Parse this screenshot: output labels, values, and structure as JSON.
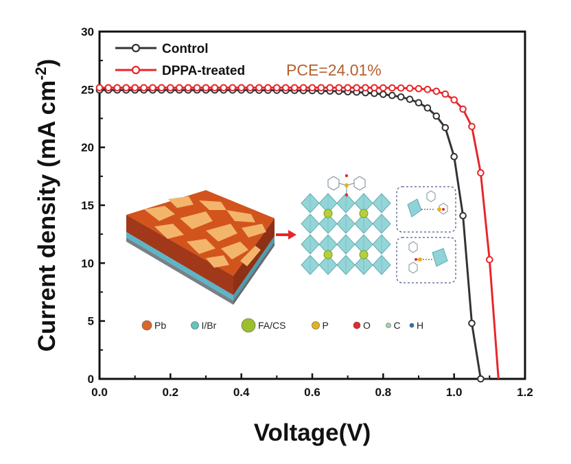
{
  "chart_data": {
    "type": "line",
    "xlabel": "Voltage(V)",
    "ylabel": "Current density (mA cm",
    "ylabel_sup": "-2",
    "ylabel_close": ")",
    "xlim": [
      0.0,
      1.2
    ],
    "ylim": [
      0,
      30
    ],
    "x_ticks": [
      0.0,
      0.2,
      0.4,
      0.6,
      0.8,
      1.0,
      1.2
    ],
    "x_tick_labels": [
      "0.0",
      "0.2",
      "0.4",
      "0.6",
      "0.8",
      "1.0",
      "1.2"
    ],
    "y_ticks": [
      0,
      5,
      10,
      15,
      20,
      25,
      30
    ],
    "y_tick_labels": [
      "0",
      "5",
      "10",
      "15",
      "20",
      "25",
      "30"
    ],
    "grid": false,
    "legend_position": "top-left",
    "annotation": "PCE=24.01%",
    "series": [
      {
        "name": "Control",
        "color": "#333333",
        "x": [
          0.0,
          0.025,
          0.05,
          0.075,
          0.1,
          0.125,
          0.15,
          0.175,
          0.2,
          0.225,
          0.25,
          0.275,
          0.3,
          0.325,
          0.35,
          0.375,
          0.4,
          0.425,
          0.45,
          0.475,
          0.5,
          0.525,
          0.55,
          0.575,
          0.6,
          0.625,
          0.65,
          0.675,
          0.7,
          0.725,
          0.75,
          0.775,
          0.8,
          0.825,
          0.85,
          0.875,
          0.9,
          0.925,
          0.95,
          0.975,
          1.0,
          1.025,
          1.05,
          1.075,
          1.1
        ],
        "y": [
          24.95,
          24.95,
          24.95,
          24.95,
          24.95,
          24.95,
          24.95,
          24.95,
          24.95,
          24.95,
          24.95,
          24.95,
          24.95,
          24.95,
          24.94,
          24.94,
          24.94,
          24.94,
          24.93,
          24.93,
          24.93,
          24.92,
          24.92,
          24.9,
          24.9,
          24.88,
          24.86,
          24.84,
          24.8,
          24.77,
          24.72,
          24.66,
          24.58,
          24.48,
          24.35,
          24.15,
          23.85,
          23.4,
          22.7,
          21.7,
          19.2,
          14.1,
          4.8,
          0.0,
          0.0
        ],
        "marker_x": [
          0.0,
          0.025,
          0.05,
          0.075,
          0.1,
          0.125,
          0.15,
          0.175,
          0.2,
          0.225,
          0.25,
          0.275,
          0.3,
          0.325,
          0.35,
          0.375,
          0.4,
          0.425,
          0.45,
          0.475,
          0.5,
          0.525,
          0.55,
          0.575,
          0.6,
          0.625,
          0.65,
          0.675,
          0.7,
          0.725,
          0.75,
          0.775,
          0.8,
          0.825,
          0.85,
          0.875,
          0.9,
          0.925,
          0.95,
          0.975,
          1.0,
          1.025,
          1.05,
          1.075
        ],
        "marker_y": [
          24.95,
          24.95,
          24.95,
          24.95,
          24.95,
          24.95,
          24.95,
          24.95,
          24.95,
          24.95,
          24.95,
          24.95,
          24.95,
          24.95,
          24.94,
          24.94,
          24.94,
          24.94,
          24.93,
          24.93,
          24.93,
          24.92,
          24.92,
          24.9,
          24.9,
          24.88,
          24.86,
          24.84,
          24.8,
          24.77,
          24.72,
          24.66,
          24.58,
          24.48,
          24.35,
          24.15,
          23.85,
          23.4,
          22.7,
          21.7,
          19.2,
          14.1,
          4.8,
          0.0
        ]
      },
      {
        "name": "DPPA-treated",
        "color": "#e8262a",
        "x": [
          0.0,
          0.025,
          0.05,
          0.075,
          0.1,
          0.125,
          0.15,
          0.175,
          0.2,
          0.225,
          0.25,
          0.275,
          0.3,
          0.325,
          0.35,
          0.375,
          0.4,
          0.425,
          0.45,
          0.475,
          0.5,
          0.525,
          0.55,
          0.575,
          0.6,
          0.625,
          0.65,
          0.675,
          0.7,
          0.725,
          0.75,
          0.775,
          0.8,
          0.825,
          0.85,
          0.875,
          0.9,
          0.925,
          0.95,
          0.975,
          1.0,
          1.025,
          1.05,
          1.075,
          1.1,
          1.125
        ],
        "y": [
          25.15,
          25.15,
          25.15,
          25.15,
          25.15,
          25.15,
          25.15,
          25.15,
          25.15,
          25.15,
          25.15,
          25.15,
          25.15,
          25.15,
          25.15,
          25.15,
          25.15,
          25.15,
          25.15,
          25.15,
          25.15,
          25.15,
          25.15,
          25.15,
          25.15,
          25.15,
          25.15,
          25.15,
          25.15,
          25.15,
          25.15,
          25.15,
          25.14,
          25.13,
          25.12,
          25.1,
          25.07,
          25.0,
          24.85,
          24.6,
          24.1,
          23.3,
          21.8,
          17.8,
          10.3,
          0.0
        ],
        "marker_x": [
          0.0,
          0.025,
          0.05,
          0.075,
          0.1,
          0.125,
          0.15,
          0.175,
          0.2,
          0.225,
          0.25,
          0.275,
          0.3,
          0.325,
          0.35,
          0.375,
          0.4,
          0.425,
          0.45,
          0.475,
          0.5,
          0.525,
          0.55,
          0.575,
          0.6,
          0.625,
          0.65,
          0.675,
          0.7,
          0.725,
          0.75,
          0.775,
          0.8,
          0.825,
          0.85,
          0.875,
          0.9,
          0.925,
          0.95,
          0.975,
          1.0,
          1.025,
          1.05,
          1.075,
          1.1
        ],
        "marker_y": [
          25.15,
          25.15,
          25.15,
          25.15,
          25.15,
          25.15,
          25.15,
          25.15,
          25.15,
          25.15,
          25.15,
          25.15,
          25.15,
          25.15,
          25.15,
          25.15,
          25.15,
          25.15,
          25.15,
          25.15,
          25.15,
          25.15,
          25.15,
          25.15,
          25.15,
          25.15,
          25.15,
          25.15,
          25.15,
          25.15,
          25.15,
          25.15,
          25.14,
          25.13,
          25.12,
          25.1,
          25.07,
          25.0,
          24.85,
          24.6,
          24.1,
          23.3,
          21.8,
          17.8,
          10.3
        ]
      }
    ]
  },
  "inset": {
    "legend": [
      {
        "label": "Pb",
        "color": "#d9662b",
        "icon": "pb-sphere-icon"
      },
      {
        "label": "I/Br",
        "color": "#5fc6bd",
        "icon": "halide-sphere-icon"
      },
      {
        "label": "FA/CS",
        "color": "#9cbf2e",
        "icon": "fa-cs-sphere-icon"
      },
      {
        "label": "P",
        "color": "#e4b21c",
        "icon": "phosphorus-sphere-icon"
      },
      {
        "label": "O",
        "color": "#e32a2a",
        "icon": "oxygen-sphere-icon"
      },
      {
        "label": "C",
        "color": "#9fd6a8",
        "icon": "carbon-sphere-icon"
      },
      {
        "label": "H",
        "color": "#2f6fbf",
        "icon": "hydrogen-sphere-icon"
      }
    ],
    "film_colors": {
      "top": "#d2541c",
      "grain": "#f3b56c",
      "side": "#a2381a",
      "substrate": "#5cb6c7",
      "base": "#7a7f86"
    },
    "octahedra_color": "#8fd3d6",
    "arrow_color": "#e8262a"
  }
}
